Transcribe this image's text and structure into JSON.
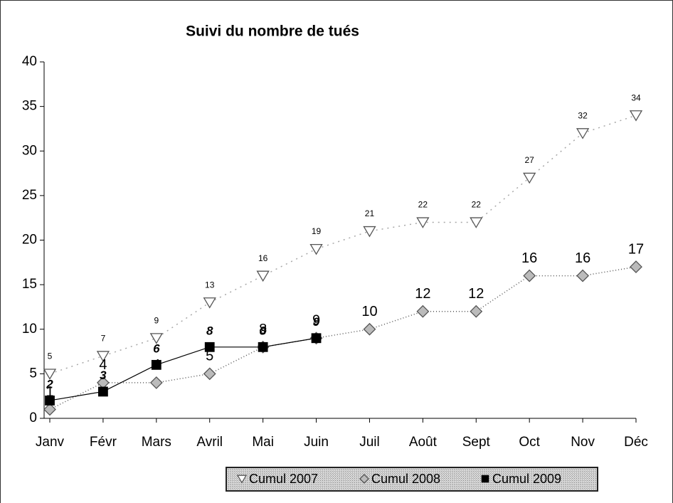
{
  "chart_data": {
    "type": "line",
    "title": "Suivi du nombre de tués",
    "categories": [
      "Janv",
      "Févr",
      "Mars",
      "Avril",
      "Mai",
      "Juin",
      "Juil",
      "Août",
      "Sept",
      "Oct",
      "Nov",
      "Déc"
    ],
    "series": [
      {
        "name": "Cumul 2007",
        "color": "#a8a8a8",
        "marker": "triangle-down",
        "values": [
          5,
          7,
          9,
          13,
          16,
          19,
          21,
          22,
          22,
          27,
          32,
          34
        ]
      },
      {
        "name": "Cumul 2008",
        "color": "#555555",
        "marker": "diamond",
        "values": [
          1,
          4,
          4,
          5,
          8,
          9,
          10,
          12,
          12,
          16,
          16,
          17
        ]
      },
      {
        "name": "Cumul 2009",
        "color": "#000000",
        "marker": "square",
        "values": [
          2,
          3,
          6,
          8,
          8,
          9,
          null,
          null,
          null,
          null,
          null,
          null
        ]
      }
    ],
    "ylim": [
      0,
      40
    ],
    "yticks": [
      0,
      5,
      10,
      15,
      20,
      25,
      30,
      35,
      40
    ],
    "grid": false,
    "legend": "bottom"
  }
}
